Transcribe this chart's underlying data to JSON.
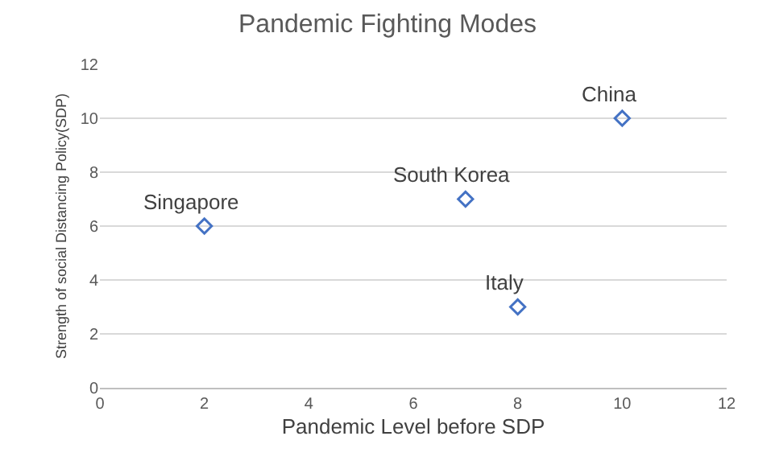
{
  "chart_data": {
    "type": "scatter",
    "title": "Pandemic Fighting Modes",
    "xlabel": "Pandemic Level before SDP",
    "ylabel": "Strength of social Distancing Policy(SDP)",
    "x": [
      2,
      7,
      8,
      10
    ],
    "series": [
      {
        "color": "#4472c4",
        "values": [
          6,
          7,
          3,
          10
        ]
      }
    ],
    "marker": "diamond",
    "xlim": [
      0,
      12
    ],
    "xticks": [
      0,
      2,
      4,
      6,
      8,
      10,
      12
    ],
    "ylim": [
      0,
      12
    ],
    "yticks": [
      0,
      2,
      4,
      6,
      8,
      10,
      12
    ],
    "grid": "y",
    "annotations": [
      {
        "text": "Singapore",
        "x": 2,
        "y": 6
      },
      {
        "text": "South Korea",
        "x": 7,
        "y": 7
      },
      {
        "text": "Italy",
        "x": 8,
        "y": 3
      },
      {
        "text": "China",
        "x": 10,
        "y": 10
      }
    ]
  }
}
